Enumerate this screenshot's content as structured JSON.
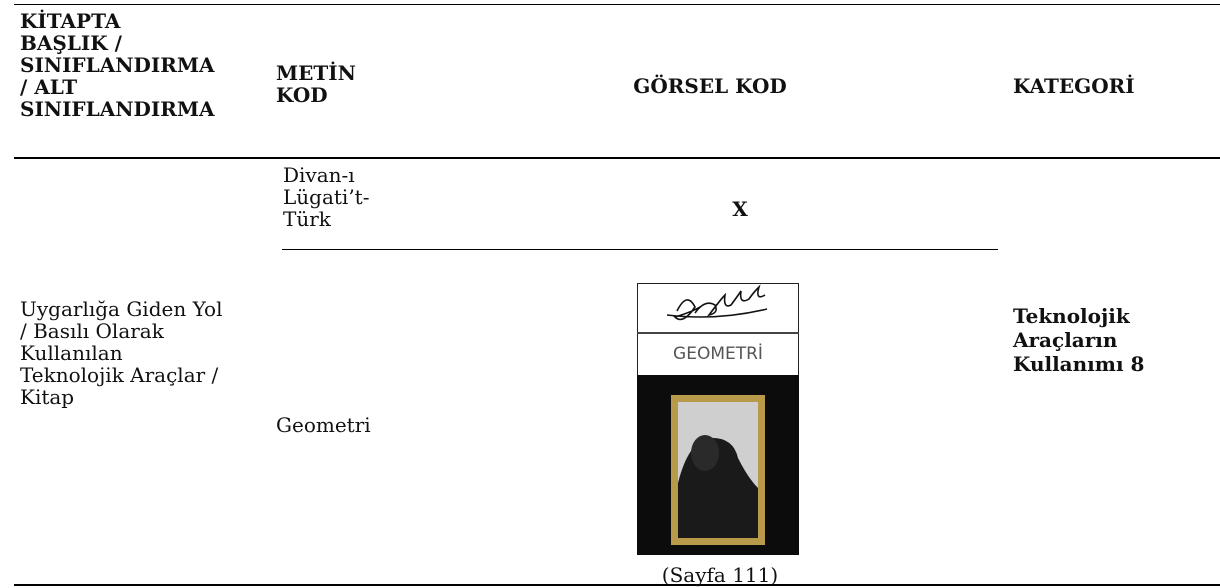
{
  "table": {
    "header": [
      [
        "KİTAPTA",
        "BAŞLIK /",
        "SINIFLANDIRMA",
        "/ ALT",
        "SINIFLANDIRMA"
      ],
      [
        "METİN",
        "KOD"
      ],
      [
        "GÖRSEL KOD"
      ],
      [
        "KATEGORİ"
      ]
    ],
    "rows": [
      {
        "text_code": [
          "Divan-ı",
          "Lügati’t-",
          "Türk"
        ],
        "visual_code": "X"
      },
      {
        "title": [
          "Uygarlığa Giden Yol",
          "/ Basılı Olarak",
          "Kullanılan",
          "Teknolojik Araçlar /",
          "Kitap"
        ],
        "text_code": [
          "Geometri"
        ],
        "visual_code": {
          "cover_title": "GEOMETRİ",
          "caption": "(Sayfa 111)"
        }
      }
    ],
    "category": [
      "Teknolojik",
      "Araçların",
      "Kullanımı 8"
    ]
  }
}
